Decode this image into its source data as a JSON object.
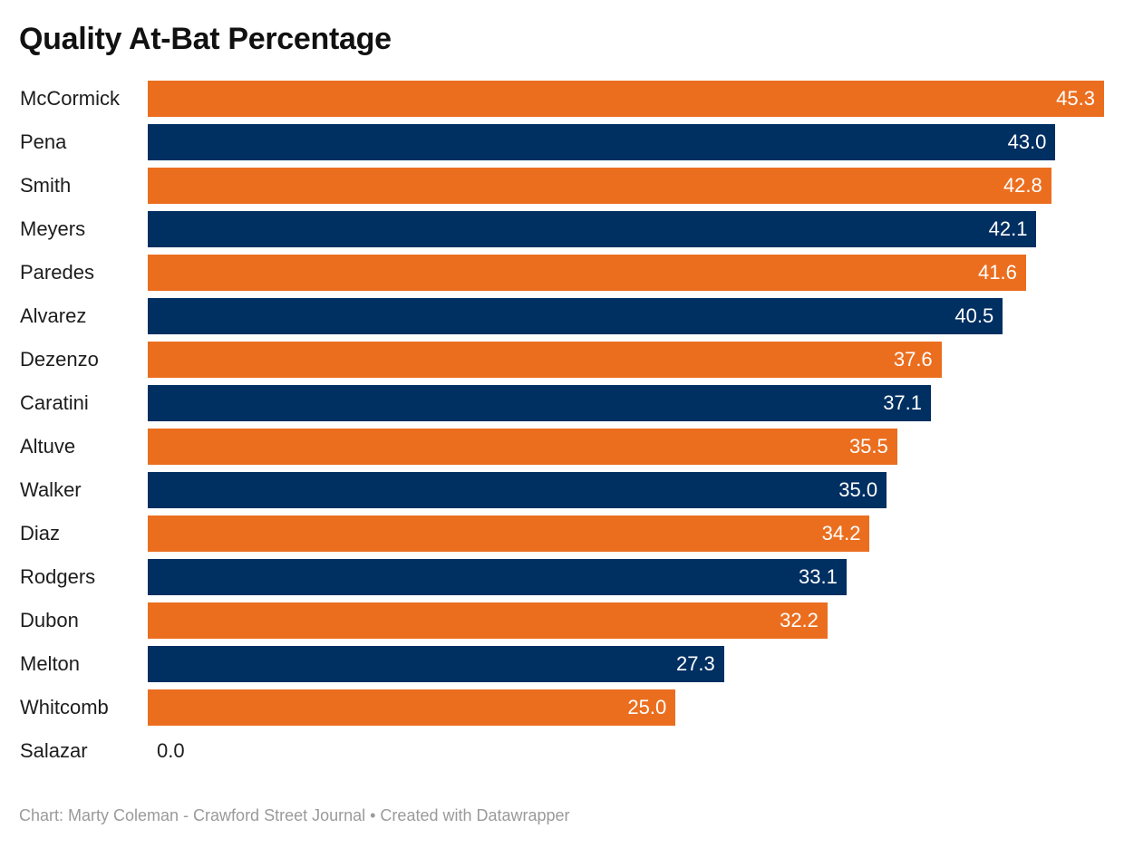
{
  "header": {
    "title": "Quality At-Bat Percentage"
  },
  "footer": {
    "credit": "Chart: Marty Coleman - Crawford Street Journal • Created with Datawrapper"
  },
  "colors": {
    "bar_orange": "#EB6E1F",
    "bar_navy": "#002F62",
    "label_text": "#1d1d1d",
    "value_text_inside": "#ffffff",
    "value_text_outside": "#1d1d1d",
    "title_text": "#111111",
    "footer_text": "#9a9a9a",
    "background": "#ffffff"
  },
  "chart_data": {
    "type": "bar",
    "orientation": "horizontal",
    "title": "Quality At-Bat Percentage",
    "xlabel": "",
    "ylabel": "",
    "xlim": [
      0,
      45.3
    ],
    "grid": false,
    "legend": "none",
    "value_label_format": "one-decimal",
    "bar_colors_alternate": [
      "#EB6E1F",
      "#002F62"
    ],
    "categories": [
      "McCormick",
      "Pena",
      "Smith",
      "Meyers",
      "Paredes",
      "Alvarez",
      "Dezenzo",
      "Caratini",
      "Altuve",
      "Walker",
      "Diaz",
      "Rodgers",
      "Dubon",
      "Melton",
      "Whitcomb",
      "Salazar"
    ],
    "values": [
      45.3,
      43.0,
      42.8,
      42.1,
      41.6,
      40.5,
      37.6,
      37.1,
      35.5,
      35.0,
      34.2,
      33.1,
      32.2,
      27.3,
      25.0,
      0.0
    ]
  }
}
